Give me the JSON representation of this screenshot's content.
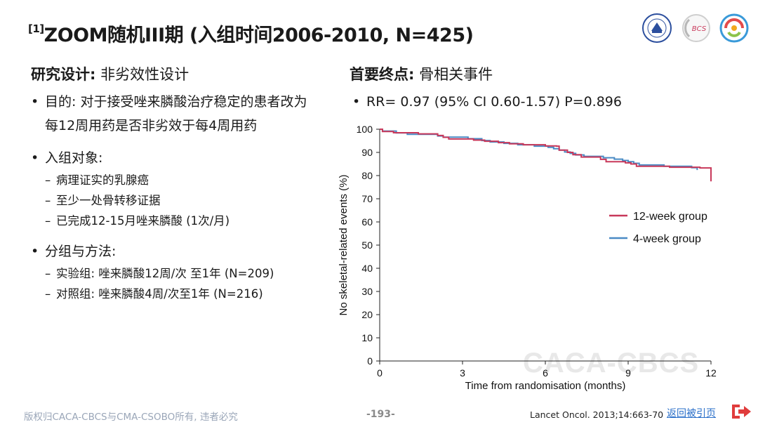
{
  "slide": {
    "title_ref": "[1]",
    "title_text": "ZOOM随机III期 (入组时间2006-2010, N=425)"
  },
  "left": {
    "head_bold": "研究设计:",
    "head_rest": " 非劣效性设计",
    "aim": "目的: 对于接受唑来膦酸治疗稳定的患者改为每12周用药是否非劣效于每4周用药",
    "population_label": "入组对象:",
    "population_items": [
      "病理证实的乳腺癌",
      "至少一处骨转移证据",
      "已完成12-15月唑来膦酸 (1次/月)"
    ],
    "groups_label": "分组与方法:",
    "group_items": [
      "实验组: 唑来膦酸12周/次 至1年 (N=209)",
      "对照组: 唑来膦酸4周/次至1年 (N=216)"
    ]
  },
  "right": {
    "head_bold": "首要终点:",
    "head_rest": " 骨相关事件",
    "result": "RR= 0.97 (95% CI 0.60-1.57) P=0.896"
  },
  "chart_data": {
    "type": "line",
    "title": "",
    "xlabel": "Time from randomisation (months)",
    "ylabel": "No skeletal-related events (%)",
    "xlim": [
      0,
      12
    ],
    "ylim": [
      0,
      100
    ],
    "xticks": [
      0,
      3,
      6,
      9,
      12
    ],
    "yticks": [
      0,
      10,
      20,
      30,
      40,
      50,
      60,
      70,
      80,
      90,
      100
    ],
    "grid": false,
    "legend_position": "right",
    "series": [
      {
        "name": "12-week group",
        "color": "#c8385a",
        "step": true,
        "points": [
          [
            0,
            100
          ],
          [
            0.1,
            99
          ],
          [
            0.5,
            98.5
          ],
          [
            1.4,
            98
          ],
          [
            2.1,
            97.3
          ],
          [
            2.3,
            96.5
          ],
          [
            2.5,
            95.8
          ],
          [
            3.4,
            95.3
          ],
          [
            3.8,
            94.8
          ],
          [
            4.3,
            94.2
          ],
          [
            4.7,
            93.7
          ],
          [
            5.2,
            93.3
          ],
          [
            6.0,
            92.8
          ],
          [
            6.4,
            92.7
          ],
          [
            6.5,
            91
          ],
          [
            6.8,
            90
          ],
          [
            7.0,
            89
          ],
          [
            7.3,
            88
          ],
          [
            8.0,
            87
          ],
          [
            8.2,
            86
          ],
          [
            8.9,
            85.5
          ],
          [
            9.1,
            85
          ],
          [
            9.3,
            84
          ],
          [
            10.5,
            83.6
          ],
          [
            11.6,
            83.3
          ],
          [
            12,
            83.3
          ],
          [
            12,
            77.5
          ]
        ]
      },
      {
        "name": "4-week group",
        "color": "#4a8ac4",
        "step": true,
        "points": [
          [
            0,
            100
          ],
          [
            0.1,
            99.2
          ],
          [
            0.6,
            98.4
          ],
          [
            1.0,
            97.8
          ],
          [
            2.1,
            97.1
          ],
          [
            2.3,
            96.6
          ],
          [
            3.2,
            95.9
          ],
          [
            3.7,
            95.1
          ],
          [
            4.0,
            94.5
          ],
          [
            4.5,
            93.9
          ],
          [
            5.0,
            93.3
          ],
          [
            5.6,
            92.7
          ],
          [
            6.1,
            92.2
          ],
          [
            6.3,
            91.6
          ],
          [
            6.5,
            91
          ],
          [
            6.7,
            90.2
          ],
          [
            6.9,
            89.6
          ],
          [
            7.1,
            88.9
          ],
          [
            7.4,
            88.3
          ],
          [
            8.1,
            87.7
          ],
          [
            8.5,
            87.1
          ],
          [
            8.8,
            86.5
          ],
          [
            9.0,
            86
          ],
          [
            9.2,
            85.3
          ],
          [
            9.4,
            84.6
          ],
          [
            10.3,
            84
          ],
          [
            11.3,
            83.4
          ],
          [
            11.5,
            82.8
          ],
          [
            11.5,
            82.4
          ]
        ]
      }
    ]
  },
  "footer": {
    "copyright": "版权归CACA-CBCS与CMA-CSOBO所有, 违者必究",
    "page": "-193-",
    "reference": "Lancet Oncol. 2013;14:663-70",
    "back_link": "返回被引页",
    "watermark": "CACA-CBCS"
  },
  "icons": [
    "university-seal-icon",
    "bcs-logo-icon",
    "csobo-logo-icon",
    "return-arrow-icon"
  ],
  "colors": {
    "accent_red": "#c8385a",
    "accent_blue": "#4a8ac4",
    "link_blue": "#2a6fc9",
    "footer_gray": "#9aa6b8"
  }
}
